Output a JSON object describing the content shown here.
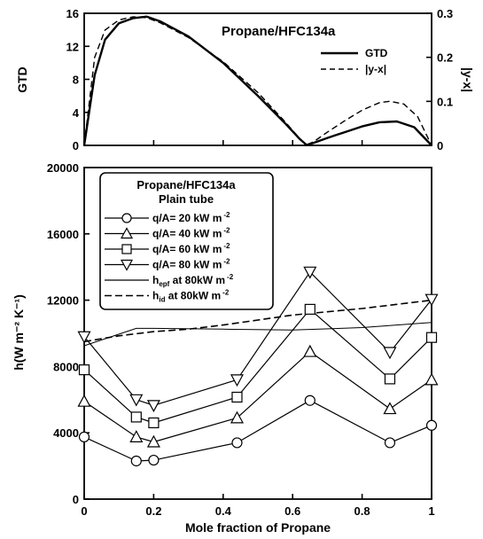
{
  "chart_data": [
    {
      "type": "line",
      "panel": "top",
      "annotation": "Propane/HFC134a",
      "ylabel_left": "GTD",
      "ylabel_right": "|y-x|",
      "xlim": [
        0,
        1
      ],
      "ylim_left": [
        0,
        16
      ],
      "ylim_right": [
        0,
        0.3
      ],
      "yticks_left": [
        "0",
        "4",
        "8",
        "12",
        "16"
      ],
      "yticks_right": [
        "0",
        "0.1",
        "0.2",
        "0.3"
      ],
      "legend_position": "right",
      "series": [
        {
          "name": "GTD",
          "axis": "left",
          "style": "solid",
          "x": [
            0,
            0.03,
            0.06,
            0.1,
            0.14,
            0.18,
            0.22,
            0.3,
            0.4,
            0.5,
            0.58,
            0.62,
            0.64,
            0.66,
            0.7,
            0.75,
            0.8,
            0.85,
            0.9,
            0.95,
            1.0
          ],
          "y": [
            0,
            8.5,
            12.8,
            14.8,
            15.4,
            15.6,
            15.0,
            13.2,
            10.0,
            6.0,
            2.6,
            0.8,
            0.05,
            0.3,
            0.9,
            1.6,
            2.3,
            2.8,
            2.9,
            2.2,
            0
          ]
        },
        {
          "name": "|y-x|",
          "axis": "right",
          "style": "dashed",
          "x": [
            0,
            0.03,
            0.06,
            0.1,
            0.14,
            0.18,
            0.22,
            0.3,
            0.4,
            0.5,
            0.58,
            0.62,
            0.64,
            0.66,
            0.7,
            0.75,
            0.8,
            0.85,
            0.88,
            0.92,
            0.96,
            1.0
          ],
          "y": [
            0,
            0.2,
            0.262,
            0.285,
            0.292,
            0.29,
            0.278,
            0.245,
            0.19,
            0.12,
            0.052,
            0.016,
            0.001,
            0.008,
            0.03,
            0.056,
            0.08,
            0.097,
            0.1,
            0.094,
            0.065,
            0
          ]
        }
      ]
    },
    {
      "type": "line",
      "panel": "bottom",
      "xlabel": "Mole fraction of Propane",
      "ylabel": "h(W m⁻² K⁻¹)",
      "xlim": [
        0,
        1
      ],
      "ylim": [
        0,
        20000
      ],
      "xticks": [
        "0",
        "0.2",
        "0.4",
        "0.6",
        "0.8",
        "1"
      ],
      "yticks": [
        "0",
        "4000",
        "8000",
        "12000",
        "16000",
        "20000"
      ],
      "legend_title_1": "Propane/HFC134a",
      "legend_title_2": "Plain tube",
      "legend_position": "top-left",
      "series": [
        {
          "name": "q/A= 20 kW m",
          "sup": "-2",
          "marker": "circle",
          "style": "solid",
          "x": [
            0,
            0.15,
            0.2,
            0.44,
            0.65,
            0.88,
            1.0
          ],
          "y": [
            3750,
            2300,
            2350,
            3400,
            5950,
            3400,
            4450
          ]
        },
        {
          "name": "q/A= 40 kW m",
          "sup": "-2",
          "marker": "triangle-up",
          "style": "solid",
          "x": [
            0,
            0.15,
            0.2,
            0.44,
            0.65,
            0.88,
            1.0
          ],
          "y": [
            5900,
            3750,
            3450,
            4900,
            8900,
            5450,
            7200
          ]
        },
        {
          "name": "q/A= 60 kW m",
          "sup": "-2",
          "marker": "square",
          "style": "solid",
          "x": [
            0,
            0.15,
            0.2,
            0.44,
            0.65,
            0.88,
            1.0
          ],
          "y": [
            7800,
            4950,
            4600,
            6150,
            11450,
            7250,
            9750
          ]
        },
        {
          "name": "q/A= 80 kW m",
          "sup": "-2",
          "marker": "triangle-down",
          "style": "solid",
          "x": [
            0,
            0.15,
            0.2,
            0.44,
            0.65,
            0.88,
            1.0
          ],
          "y": [
            9800,
            6000,
            5650,
            7200,
            13700,
            8850,
            12050
          ]
        },
        {
          "name": "h",
          "sub": "epf",
          "suffix": " at 80kW m",
          "sup": "-2",
          "marker": "none",
          "style": "solid-thin",
          "x": [
            0,
            0.15,
            0.2,
            0.4,
            0.6,
            0.8,
            1.0
          ],
          "y": [
            9250,
            10300,
            10300,
            10250,
            10200,
            10350,
            10650
          ]
        },
        {
          "name": "h",
          "sub": "id",
          "suffix": "  at 80kW m",
          "sup": "-2",
          "marker": "none",
          "style": "dashed",
          "x": [
            0,
            0.1,
            0.2,
            0.3,
            0.4,
            0.5,
            0.6,
            0.7,
            0.8,
            0.9,
            1.0
          ],
          "y": [
            9500,
            9850,
            10100,
            10250,
            10500,
            10800,
            11100,
            11300,
            11500,
            11750,
            12000
          ]
        }
      ]
    }
  ]
}
